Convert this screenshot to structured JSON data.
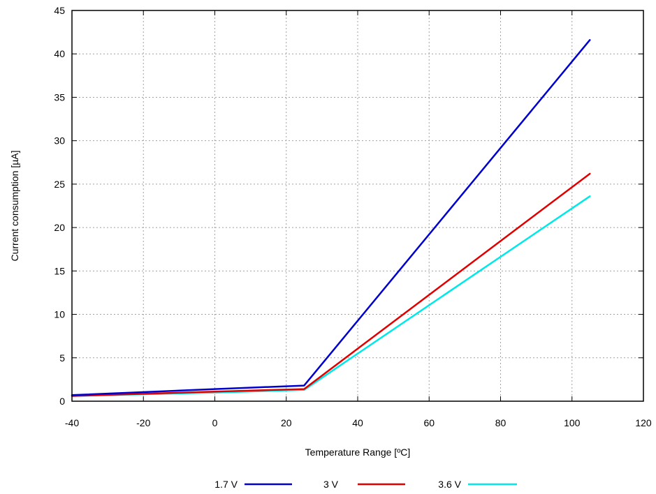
{
  "chart_data": {
    "type": "line",
    "title": "",
    "xlabel": "Temperature Range [ºC]",
    "ylabel": "Current consumption [µA]",
    "xlim": [
      -40,
      120
    ],
    "ylim": [
      0,
      45
    ],
    "xticks": [
      -40,
      -20,
      0,
      20,
      40,
      60,
      80,
      100,
      120
    ],
    "yticks": [
      0,
      5,
      10,
      15,
      20,
      25,
      30,
      35,
      40,
      45
    ],
    "grid": true,
    "legend_position": "bottom",
    "series": [
      {
        "name": "1.7 V",
        "color": "#0000cc",
        "x": [
          -40,
          0,
          25,
          105
        ],
        "y": [
          0.7,
          1.4,
          1.8,
          41.6
        ]
      },
      {
        "name": "3 V",
        "color": "#e00000",
        "x": [
          -40,
          0,
          25,
          105
        ],
        "y": [
          0.6,
          1.1,
          1.4,
          26.2
        ]
      },
      {
        "name": "3.6 V",
        "color": "#00e8e8",
        "x": [
          -40,
          0,
          25,
          105
        ],
        "y": [
          0.6,
          1.0,
          1.3,
          23.6
        ]
      }
    ]
  }
}
